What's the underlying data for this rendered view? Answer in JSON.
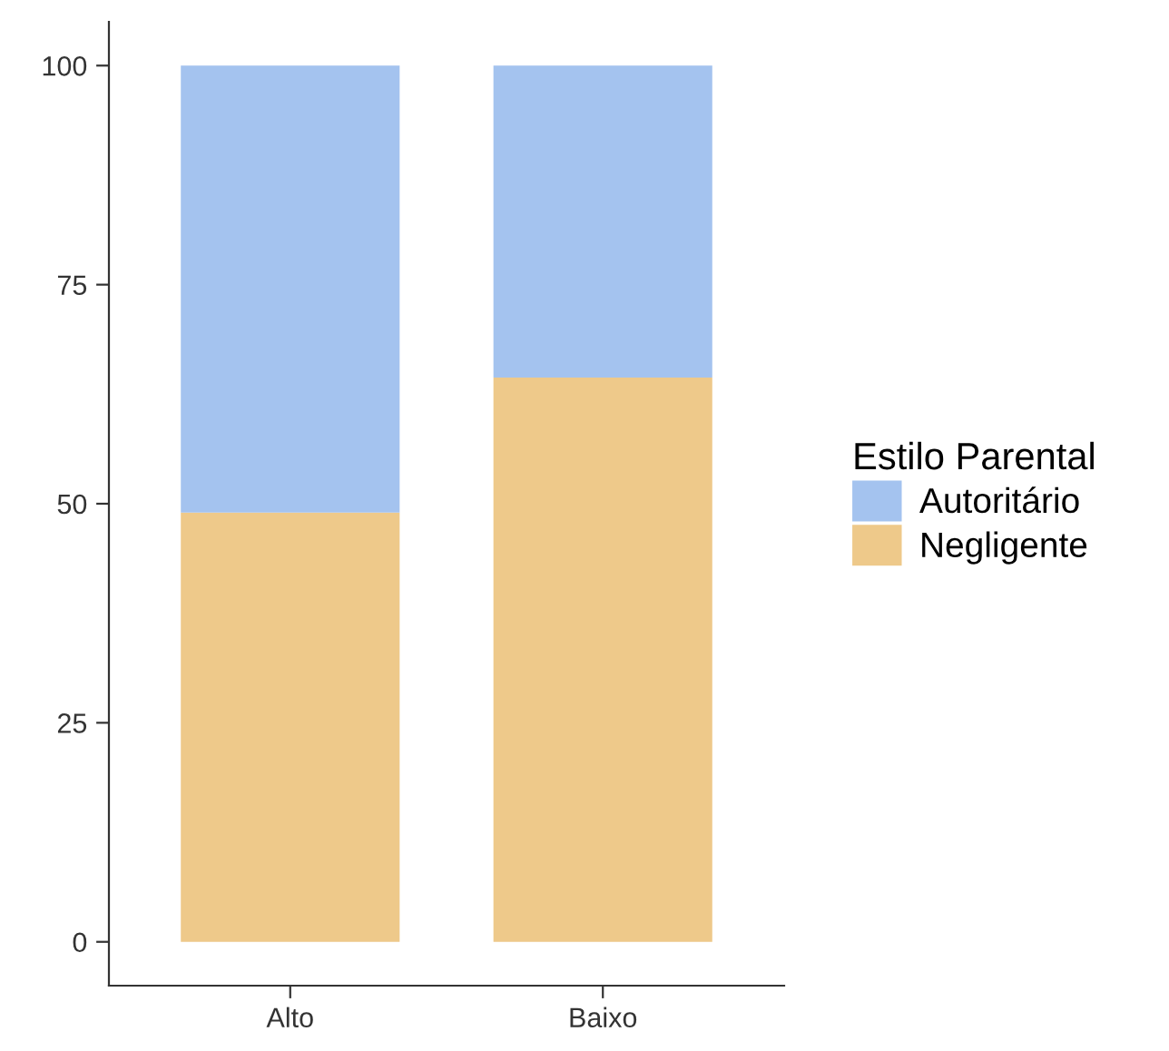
{
  "chart_data": {
    "type": "bar",
    "stacked": true,
    "categories": [
      "Alto",
      "Baixo"
    ],
    "legend_title": "Estilo Parental",
    "legend": "right",
    "series": [
      {
        "name": "Negligente",
        "color": "#eec98a",
        "values": [
          49,
          64.4
        ]
      },
      {
        "name": "Autoritário",
        "color": "#a4c3ef",
        "values": [
          51,
          35.6
        ]
      }
    ],
    "ylim": [
      -5,
      105
    ],
    "yticks": [
      0,
      25,
      50,
      75,
      100
    ],
    "grid": false
  }
}
